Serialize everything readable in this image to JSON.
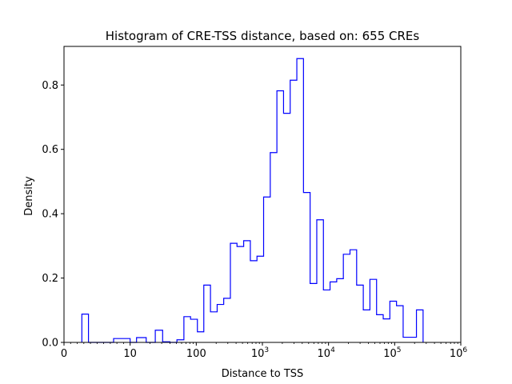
{
  "chart_data": {
    "type": "histogram",
    "title": "Histogram of CRE-TSS distance, based on: 655 CREs",
    "xlabel": "Distance to TSS",
    "ylabel": "Density",
    "x_scale": "symlog",
    "xlim": [
      0,
      1000000
    ],
    "ylim": [
      0,
      0.92
    ],
    "x_ticks": [
      {
        "value": 0,
        "label": "0"
      },
      {
        "value": 10,
        "label": "10"
      },
      {
        "value": 100,
        "label": "100"
      },
      {
        "value": 1000,
        "label": "10",
        "exp": "3"
      },
      {
        "value": 10000,
        "label": "10",
        "exp": "4"
      },
      {
        "value": 100000,
        "label": "10",
        "exp": "5"
      },
      {
        "value": 1000000,
        "label": "10",
        "exp": "6"
      }
    ],
    "y_ticks": [
      0.0,
      0.2,
      0.4,
      0.6,
      0.8
    ],
    "y_tick_labels": [
      "0.0",
      "0.2",
      "0.4",
      "0.6",
      "0.8"
    ],
    "grid": false,
    "color": "#0000ff",
    "histtype": "step",
    "bin_edges": [
      2.7,
      3.7,
      5,
      7.5,
      10,
      12.5,
      17.5,
      24,
      31,
      40,
      51,
      65,
      82,
      104,
      130,
      164,
      207,
      260,
      328,
      413,
      521,
      657,
      828,
      1043,
      1315,
      1657,
      2088,
      2632,
      3317,
      4180,
      5268,
      6640,
      8368,
      10546,
      13291,
      16752,
      21113,
      26609,
      33535,
      42265,
      53267,
      67132,
      84607,
      106630,
      134387,
      169369,
      213459,
      269025
    ],
    "densities": [
      0.088,
      0.0,
      0.0,
      0.012,
      0.0,
      0.015,
      0.0,
      0.038,
      0.002,
      0.0,
      0.008,
      0.08,
      0.072,
      0.033,
      0.178,
      0.095,
      0.118,
      0.137,
      0.308,
      0.298,
      0.316,
      0.254,
      0.268,
      0.452,
      0.59,
      0.782,
      0.712,
      0.815,
      0.882,
      0.466,
      0.183,
      0.381,
      0.163,
      0.188,
      0.198,
      0.274,
      0.288,
      0.178,
      0.101,
      0.196,
      0.086,
      0.073,
      0.128,
      0.114,
      0.016,
      0.016,
      0.101
    ]
  }
}
